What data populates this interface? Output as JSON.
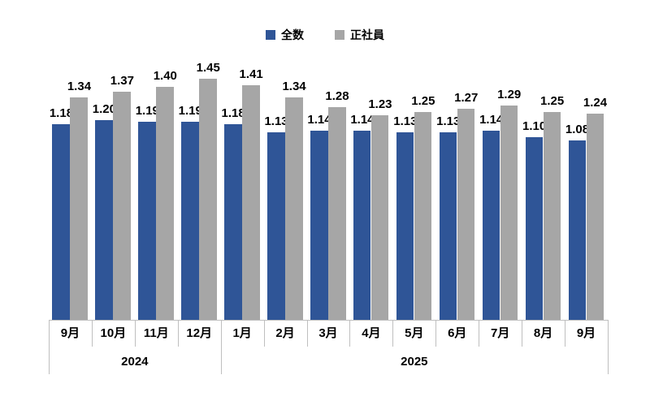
{
  "legend": {
    "items": [
      {
        "label": "全数",
        "color": "#2f5597"
      },
      {
        "label": "正社員",
        "color": "#a6a6a6"
      }
    ]
  },
  "chart_data": {
    "type": "bar",
    "title": "",
    "categories": [
      "9月",
      "10月",
      "11月",
      "12月",
      "1月",
      "2月",
      "3月",
      "4月",
      "5月",
      "6月",
      "7月",
      "8月",
      "9月"
    ],
    "year_groups": [
      {
        "label": "2024",
        "start_index": 0,
        "count": 4
      },
      {
        "label": "2025",
        "start_index": 4,
        "count": 9
      }
    ],
    "series": [
      {
        "name": "全数",
        "color": "#2f5597",
        "values": [
          1.18,
          1.2,
          1.19,
          1.19,
          1.18,
          1.13,
          1.14,
          1.14,
          1.13,
          1.13,
          1.14,
          1.1,
          1.08
        ]
      },
      {
        "name": "正社員",
        "color": "#a6a6a6",
        "values": [
          1.34,
          1.37,
          1.4,
          1.45,
          1.41,
          1.34,
          1.28,
          1.23,
          1.25,
          1.27,
          1.29,
          1.25,
          1.24
        ]
      }
    ],
    "ylim": [
      0,
      1.45
    ],
    "data_labels": true,
    "data_label_decimals": 2,
    "legend_position": "top",
    "grid": false,
    "axis_color": "#bfbfbf",
    "xlabel": "",
    "ylabel": ""
  }
}
